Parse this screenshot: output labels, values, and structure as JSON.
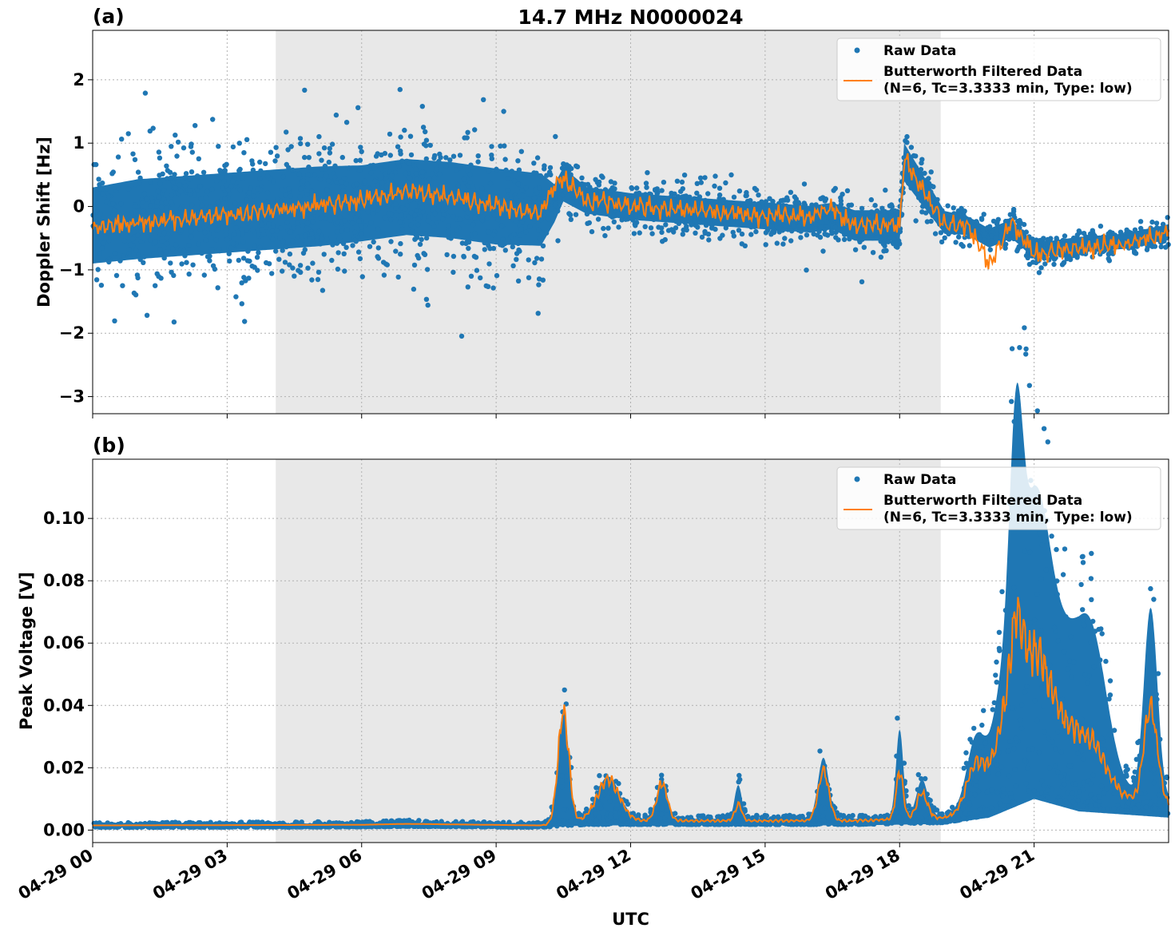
{
  "figure": {
    "title": "14.7 MHz N0000024",
    "xlabel": "UTC",
    "x_range": [
      "04-29 00:00",
      "04-29 24:00"
    ],
    "x_ticks": [
      "04-29 00",
      "04-29 03",
      "04-29 06",
      "04-29 09",
      "04-29 12",
      "04-29 15",
      "04-29 18",
      "04-29 21"
    ],
    "shaded_interval": [
      "04-29 04:05",
      "04-29 18:55"
    ],
    "colors": {
      "raw": "#1f77b4",
      "filtered": "#ff7f0e",
      "shade": "#e8e8e8"
    },
    "legend": {
      "raw_label": "Raw Data",
      "filtered_label_line1": "Butterworth Filtered Data",
      "filtered_label_line2": "(N=6, Tc=3.3333 min, Type: low)",
      "placement": "upper-right"
    }
  },
  "chart_data": [
    {
      "type": "scatter",
      "panel_label": "(a)",
      "ylabel": "Doppler Shift [Hz]",
      "ylim": [
        -3.27,
        2.78
      ],
      "y_ticks": [
        -3,
        -2,
        -1,
        0,
        1,
        2
      ],
      "y_tick_labels": [
        "−3",
        "−2",
        "−1",
        "0",
        "1",
        "2"
      ],
      "grid": true,
      "x_hours": [
        0,
        1,
        2,
        3,
        4,
        5,
        6,
        7,
        8,
        9,
        10,
        10.3,
        10.5,
        11,
        12,
        13,
        14,
        15,
        16,
        16.5,
        17,
        18,
        18.1,
        19,
        19.5,
        20,
        20.5,
        21,
        22,
        23,
        24
      ],
      "series": [
        {
          "name": "Raw Data",
          "kind": "points",
          "center": [
            -0.3,
            -0.2,
            -0.15,
            -0.1,
            -0.05,
            0.0,
            0.05,
            0.15,
            0.1,
            0.0,
            -0.05,
            0.05,
            0.35,
            0.1,
            0.0,
            -0.05,
            -0.1,
            -0.15,
            -0.2,
            -0.15,
            -0.3,
            -0.3,
            0.7,
            -0.25,
            -0.3,
            -0.5,
            -0.35,
            -0.7,
            -0.6,
            -0.55,
            -0.4
          ],
          "spread": [
            1.0,
            1.05,
            1.05,
            1.05,
            1.05,
            1.05,
            1.0,
            1.0,
            1.0,
            1.0,
            0.95,
            0.5,
            0.45,
            0.35,
            0.35,
            0.35,
            0.35,
            0.35,
            0.35,
            0.35,
            0.4,
            0.4,
            0.5,
            0.3,
            0.25,
            0.25,
            0.25,
            0.2,
            0.2,
            0.2,
            0.2
          ]
        },
        {
          "name": "Butterworth Filtered Data",
          "kind": "line",
          "values": [
            -0.35,
            -0.25,
            -0.2,
            -0.15,
            -0.05,
            0.0,
            0.1,
            0.25,
            0.15,
            0.0,
            -0.1,
            0.35,
            0.45,
            0.1,
            0.0,
            -0.05,
            -0.1,
            -0.15,
            -0.15,
            -0.05,
            -0.3,
            -0.3,
            0.75,
            -0.3,
            -0.3,
            -0.9,
            -0.25,
            -0.75,
            -0.65,
            -0.6,
            -0.4
          ]
        }
      ]
    },
    {
      "type": "scatter",
      "panel_label": "(b)",
      "ylabel": "Peak Voltage [V]",
      "ylim": [
        -0.004,
        0.119
      ],
      "y_ticks": [
        0.0,
        0.02,
        0.04,
        0.06,
        0.08,
        0.1
      ],
      "y_tick_labels": [
        "0.00",
        "0.02",
        "0.04",
        "0.06",
        "0.08",
        "0.10"
      ],
      "grid": true,
      "peaks": [
        {
          "hour": 10.5,
          "height": 0.035,
          "width": 0.12,
          "max": 0.058
        },
        {
          "hour": 11.5,
          "height": 0.013,
          "width": 0.25,
          "max": 0.022
        },
        {
          "hour": 12.7,
          "height": 0.012,
          "width": 0.12,
          "max": 0.02
        },
        {
          "hour": 14.4,
          "height": 0.005,
          "width": 0.08,
          "max": 0.016
        },
        {
          "hour": 16.3,
          "height": 0.016,
          "width": 0.12,
          "max": 0.031
        },
        {
          "hour": 18.0,
          "height": 0.015,
          "width": 0.08,
          "max": 0.042
        },
        {
          "hour": 18.5,
          "height": 0.008,
          "width": 0.12,
          "max": 0.018
        },
        {
          "hour": 19.7,
          "height": 0.014,
          "width": 0.2,
          "max": 0.032
        },
        {
          "hour": 20.3,
          "height": 0.018,
          "width": 0.25,
          "max": 0.045
        },
        {
          "hour": 20.6,
          "height": 0.032,
          "width": 0.15,
          "max": 0.113
        },
        {
          "hour": 21.0,
          "height": 0.025,
          "width": 0.3,
          "max": 0.085
        },
        {
          "hour": 21.5,
          "height": 0.018,
          "width": 0.5,
          "max": 0.062
        },
        {
          "hour": 22.3,
          "height": 0.012,
          "width": 0.35,
          "max": 0.058
        },
        {
          "hour": 23.6,
          "height": 0.03,
          "width": 0.15,
          "max": 0.09
        }
      ],
      "baseline": [
        [
          0,
          0.0015
        ],
        [
          6,
          0.0017
        ],
        [
          7,
          0.002
        ],
        [
          10,
          0.0015
        ],
        [
          11,
          0.003
        ],
        [
          17,
          0.003
        ],
        [
          19,
          0.004
        ],
        [
          20,
          0.008
        ],
        [
          21,
          0.02
        ],
        [
          22,
          0.012
        ],
        [
          24,
          0.008
        ]
      ],
      "series": [
        {
          "name": "Raw Data",
          "kind": "points"
        },
        {
          "name": "Butterworth Filtered Data",
          "kind": "line"
        }
      ]
    }
  ]
}
